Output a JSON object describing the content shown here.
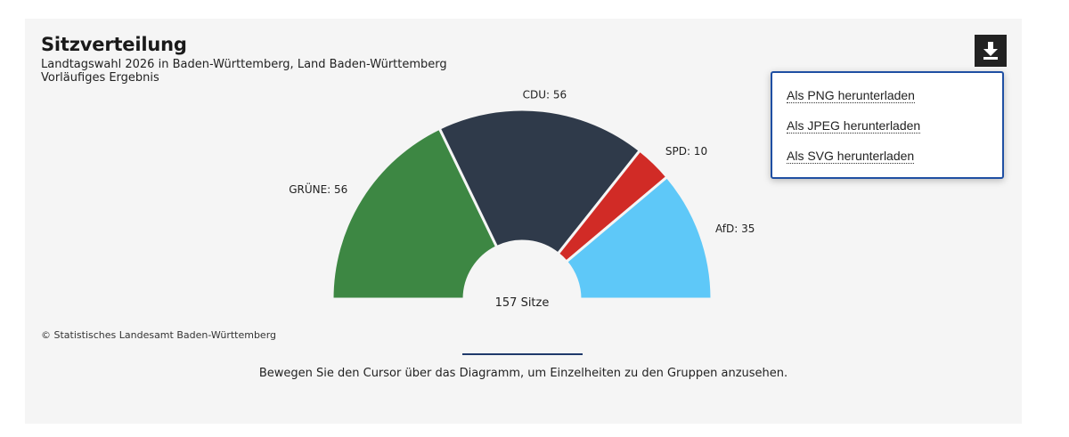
{
  "header": {
    "title": "Sitzverteilung",
    "subtitle_line1": "Landtagswahl 2026 in Baden-Württemberg, Land Baden-Württemberg",
    "subtitle_line2": "Vorläufiges Ergebnis"
  },
  "download_menu": {
    "png": "Als PNG herunterladen",
    "jpeg": "Als JPEG herunterladen",
    "svg": "Als SVG herunterladen"
  },
  "chart_data": {
    "type": "pie",
    "variant": "semicircle",
    "title": "Sitzverteilung",
    "center_label": "157 Sitze",
    "total_seats": 157,
    "categories": [
      "GRÜNE",
      "CDU",
      "SPD",
      "AfD"
    ],
    "values": [
      56,
      56,
      10,
      35
    ],
    "labels": [
      "GRÜNE: 56",
      "CDU: 56",
      "SPD: 10",
      "AfD: 35"
    ],
    "colors": [
      "#3d8743",
      "#2f3a4a",
      "#d12b26",
      "#5ec8f8"
    ]
  },
  "footer": {
    "credit": "© Statistisches Landesamt Baden-Württemberg",
    "hint": "Bewegen Sie den Cursor über das Diagramm, um Einzelheiten zu den Gruppen anzusehen."
  }
}
